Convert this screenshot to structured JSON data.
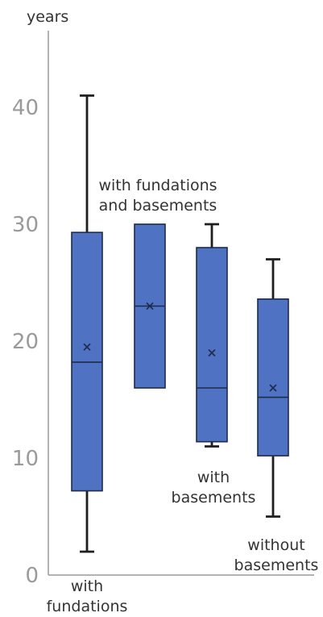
{
  "chart_data": {
    "type": "box",
    "ylabel": "years",
    "ylim": [
      0,
      47
    ],
    "yticks": [
      0,
      10,
      20,
      30,
      40
    ],
    "grid": false,
    "series": [
      {
        "label_lines": [
          "with",
          "fundations"
        ],
        "min": 2,
        "q1": 7.2,
        "median": 18.2,
        "q3": 29.3,
        "max": 41,
        "mean": 19.5
      },
      {
        "label_lines": [
          "with fundations",
          "and basements"
        ],
        "min": 16,
        "q1": 16,
        "median": 23,
        "q3": 30,
        "max": 30,
        "mean": 23
      },
      {
        "label_lines": [
          "with",
          "basements"
        ],
        "min": 11,
        "q1": 11.4,
        "median": 16,
        "q3": 28,
        "max": 30,
        "mean": 19
      },
      {
        "label_lines": [
          "without",
          "basements"
        ],
        "min": 5,
        "q1": 10.2,
        "median": 15.2,
        "q3": 23.6,
        "max": 27,
        "mean": 16
      }
    ]
  }
}
